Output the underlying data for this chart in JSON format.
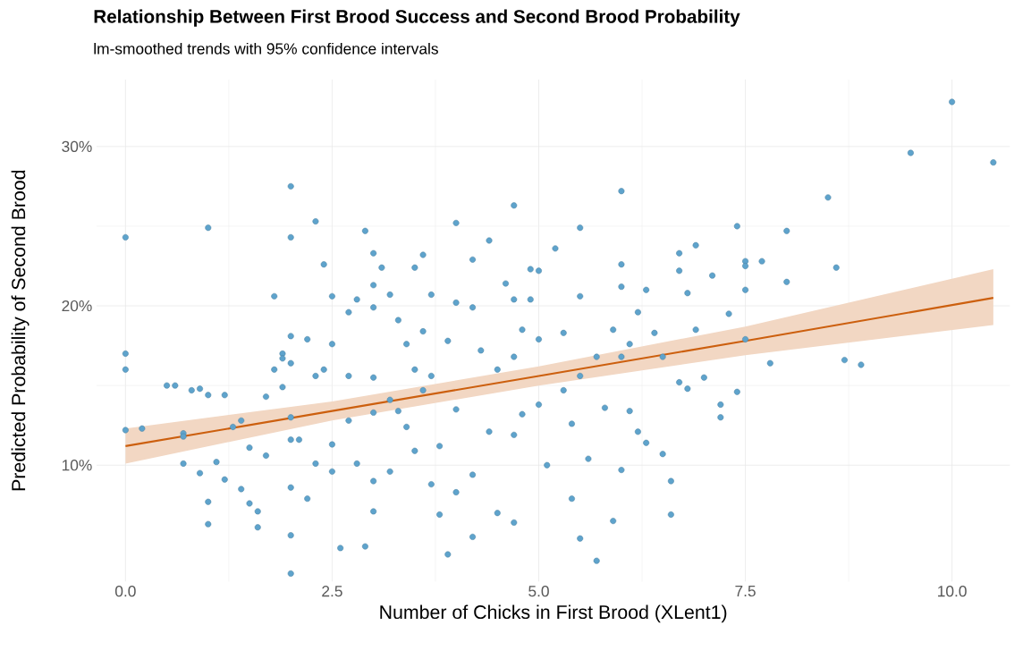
{
  "chart_data": {
    "type": "scatter",
    "title": "Relationship Between First Brood Success and Second Brood Probability",
    "subtitle": "lm-smoothed trends with 95% confidence intervals",
    "xlabel": "Number of Chicks in First Brood (XLent1)",
    "ylabel": "Predicted Probability of Second Brood",
    "xlim": [
      -0.35,
      10.7
    ],
    "ylim": [
      2.7,
      34.2
    ],
    "xticks": [
      {
        "value": 0,
        "label": "0.0"
      },
      {
        "value": 2.5,
        "label": "2.5"
      },
      {
        "value": 5,
        "label": "5.0"
      },
      {
        "value": 7.5,
        "label": "7.5"
      },
      {
        "value": 10,
        "label": "10.0"
      }
    ],
    "yticks": [
      {
        "value": 10,
        "label": "10%"
      },
      {
        "value": 20,
        "label": "20%"
      },
      {
        "value": 30,
        "label": "30%"
      }
    ],
    "grid": true,
    "series": [
      {
        "color": "#5ea3cc",
        "marker": "circle",
        "x": [
          0,
          0,
          0,
          0,
          0.2,
          0.5,
          0.6,
          0.7,
          0.7,
          0.7,
          0.8,
          0.9,
          1,
          1,
          0.9,
          1.0,
          1.0,
          1.1,
          1.2,
          1.2,
          1.3,
          1.4,
          1.4,
          1.5,
          1.5,
          1.6,
          1.6,
          1.7,
          1.7,
          1.8,
          1.8,
          1.9,
          1.9,
          1.9,
          2,
          2,
          2,
          2,
          2,
          2,
          2,
          2,
          2,
          2.1,
          2.2,
          2.2,
          2.3,
          2.3,
          2.3,
          2.4,
          2.4,
          2.5,
          2.5,
          2.5,
          2.5,
          2.6,
          2.7,
          2.7,
          2.7,
          2.8,
          2.8,
          2.9,
          2.9,
          3.0,
          3.0,
          3.0,
          3.0,
          3.0,
          3.0,
          3.0,
          3.1,
          3.2,
          3.2,
          3.2,
          3.3,
          3.3,
          3.4,
          3.4,
          3.5,
          3.5,
          3.5,
          3.6,
          3.6,
          3.6,
          3.7,
          3.7,
          3.7,
          3.8,
          3.8,
          3.9,
          3.9,
          4.0,
          4.0,
          4.0,
          4.0,
          4.2,
          4.2,
          4.2,
          4.2,
          4.3,
          4.4,
          4.4,
          4.5,
          4.5,
          4.6,
          4.7,
          4.7,
          4.7,
          4.7,
          4.7,
          4.8,
          4.8,
          4.9,
          4.9,
          5.0,
          5.0,
          5.0,
          5.1,
          5.2,
          5.3,
          5.3,
          5.4,
          5.4,
          5.5,
          5.5,
          5.5,
          5.5,
          5.6,
          5.7,
          5.7,
          5.8,
          5.9,
          5.9,
          6,
          6,
          6,
          6,
          6,
          6.1,
          6.1,
          6.2,
          6.2,
          6.3,
          6.3,
          6.4,
          6.5,
          6.5,
          6.6,
          6.6,
          6.7,
          6.7,
          6.7,
          6.8,
          6.8,
          6.9,
          6.9,
          7.0,
          7.1,
          7.2,
          7.2,
          7.3,
          7.4,
          7.4,
          7.5,
          7.5,
          7.5,
          7.7,
          7.8,
          7.5,
          8,
          8,
          8.5,
          8.6,
          8.7,
          8.9,
          9.5,
          10,
          10.5
        ],
        "values": [
          24.3,
          17.0,
          16.0,
          12.2,
          12.3,
          15,
          15,
          12,
          11.8,
          10.1,
          14.7,
          14.8,
          14.4,
          24.9,
          9.5,
          7.7,
          6.3,
          10.2,
          9.1,
          14.4,
          12.4,
          12.8,
          8.5,
          11.1,
          7.6,
          6.1,
          7.1,
          14.3,
          10.6,
          16.0,
          20.6,
          17.0,
          16.7,
          14.9,
          27.5,
          24.3,
          16.4,
          18.1,
          13.0,
          11.6,
          8.6,
          5.6,
          3.2,
          11.6,
          17.9,
          7.9,
          25.3,
          15.6,
          10.1,
          22.6,
          16.0,
          17.6,
          20.6,
          11.3,
          9.6,
          4.8,
          19.6,
          15.6,
          12.8,
          20.4,
          10.1,
          4.9,
          24.7,
          21.3,
          23.3,
          19.9,
          15.5,
          13.3,
          9.0,
          7.1,
          22.4,
          20.7,
          14.1,
          9.6,
          13.4,
          19.1,
          17.6,
          12.4,
          22.4,
          16.0,
          10.9,
          23.2,
          18.4,
          14.7,
          20.7,
          15.6,
          8.8,
          11.2,
          6.9,
          17.8,
          4.4,
          25.2,
          20.2,
          13.5,
          8.3,
          22.9,
          19.9,
          9.4,
          5.5,
          17.2,
          12.1,
          24.1,
          7.0,
          16.0,
          21.4,
          26.3,
          20.4,
          16.8,
          11.9,
          6.4,
          18.5,
          13.2,
          22.3,
          20.4,
          22.2,
          17.9,
          13.8,
          10.0,
          23.6,
          18.3,
          14.7,
          12.6,
          7.9,
          24.9,
          20.6,
          15.6,
          5.4,
          10.4,
          16.8,
          4.0,
          13.6,
          18.5,
          6.5,
          27.2,
          22.6,
          21.2,
          16.8,
          9.7,
          13.4,
          17.6,
          12.1,
          19.6,
          11.4,
          21.0,
          18.3,
          16.8,
          10.7,
          9.0,
          6.9,
          23.3,
          22.2,
          15.2,
          20.8,
          14.8,
          23.8,
          18.5,
          15.5,
          21.9,
          13.8,
          13.0,
          19.5,
          25.0,
          14.6,
          22.8,
          22.5,
          21.0,
          22.8,
          16.4,
          17.9,
          24.7,
          21.5,
          26.8,
          22.4,
          16.6,
          16.3,
          29.6,
          32.8,
          29.0
        ]
      },
      {
        "type": "line",
        "color": "#cc5f0e",
        "marker": "none",
        "x": [
          0,
          2.5,
          5,
          7.5,
          10.5
        ],
        "values": [
          11.2,
          13.4,
          15.6,
          17.8,
          20.5
        ],
        "lower": [
          10.1,
          12.8,
          15.0,
          16.9,
          18.8
        ],
        "upper": [
          12.3,
          14.0,
          16.2,
          18.7,
          22.3
        ]
      }
    ]
  }
}
